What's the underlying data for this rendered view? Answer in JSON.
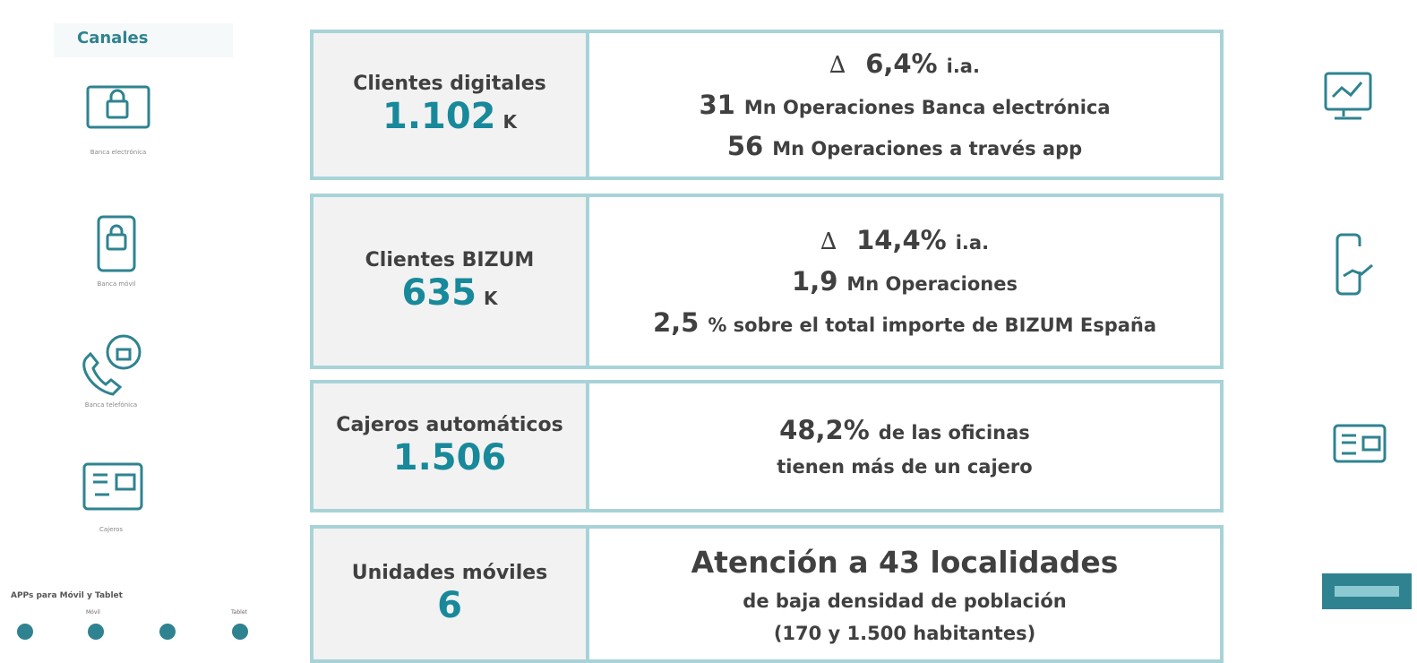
{
  "sidebar": {
    "title": "Canales",
    "channels": [
      "Banca electrónica",
      "Banca móvil",
      "Banca telefónica",
      "Cajeros"
    ],
    "apps": {
      "title": "APPs para Móvil y Tablet",
      "groups": [
        "Móvil",
        "Tablet"
      ]
    }
  },
  "table": {
    "rows": [
      {
        "label": "Clientes digitales",
        "value": "1.102",
        "unit": "K",
        "lines": [
          [
            "∆",
            "6,4%",
            "i.a."
          ],
          [
            "31",
            "Mn  Operaciones Banca electrónica"
          ],
          [
            "56",
            "Mn  Operaciones a través app"
          ]
        ]
      },
      {
        "label": "Clientes BIZUM",
        "value": "635",
        "unit": "K",
        "lines": [
          [
            "∆",
            "14,4%",
            "i.a."
          ],
          [
            "1,9",
            "Mn  Operaciones"
          ],
          [
            "2,5",
            "% sobre el total importe de BIZUM España"
          ]
        ]
      },
      {
        "label": "Cajeros automáticos",
        "value": "1.506",
        "lines": [
          [
            "48,2%",
            "de las oficinas"
          ],
          [
            "tienen más de un cajero"
          ]
        ]
      },
      {
        "label": "Unidades móviles",
        "value": "6",
        "lines": [
          [
            "Atención a 43 localidades"
          ],
          [
            "de baja densidad de población"
          ],
          [
            "(170 y 1.500  habitantes)"
          ]
        ]
      }
    ]
  }
}
